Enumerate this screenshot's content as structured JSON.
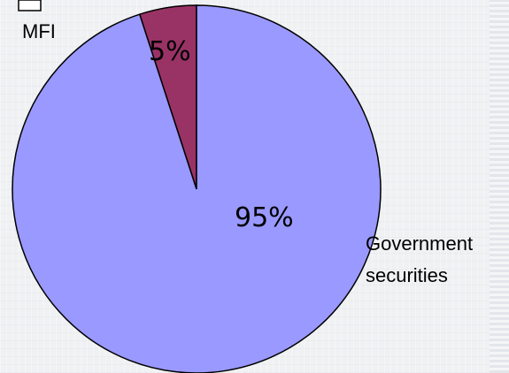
{
  "chart_data": {
    "type": "pie",
    "categories": [
      "MFI",
      "Government securities"
    ],
    "values": [
      5,
      95
    ],
    "data_labels": [
      "5%",
      "95%"
    ],
    "colors": [
      "#993366",
      "#9999ff"
    ],
    "start_angle_deg": 0,
    "direction": "counterclockwise",
    "legend": "none"
  }
}
